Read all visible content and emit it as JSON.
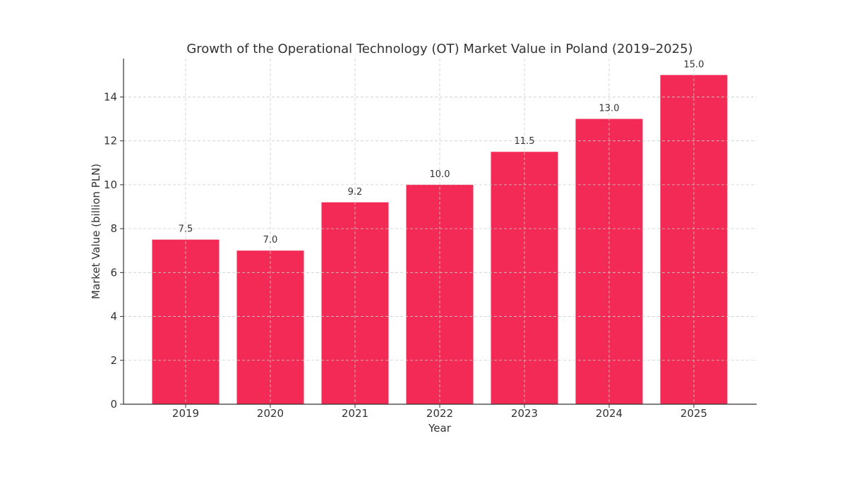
{
  "chart_data": {
    "type": "bar",
    "title": "Growth of the Operational Technology (OT) Market Value in Poland (2019–2025)",
    "xlabel": "Year",
    "ylabel": "Market Value (billion PLN)",
    "categories": [
      "2019",
      "2020",
      "2021",
      "2022",
      "2023",
      "2024",
      "2025"
    ],
    "values": [
      7.5,
      7.0,
      9.2,
      10.0,
      11.5,
      13.0,
      15.0
    ],
    "data_labels": [
      "7.5",
      "7.0",
      "9.2",
      "10.0",
      "11.5",
      "13.0",
      "15.0"
    ],
    "yticks": [
      0,
      2,
      4,
      6,
      8,
      10,
      12,
      14
    ],
    "ylim": [
      0,
      15.75
    ],
    "grid": true,
    "bar_color": "#F22A55"
  }
}
